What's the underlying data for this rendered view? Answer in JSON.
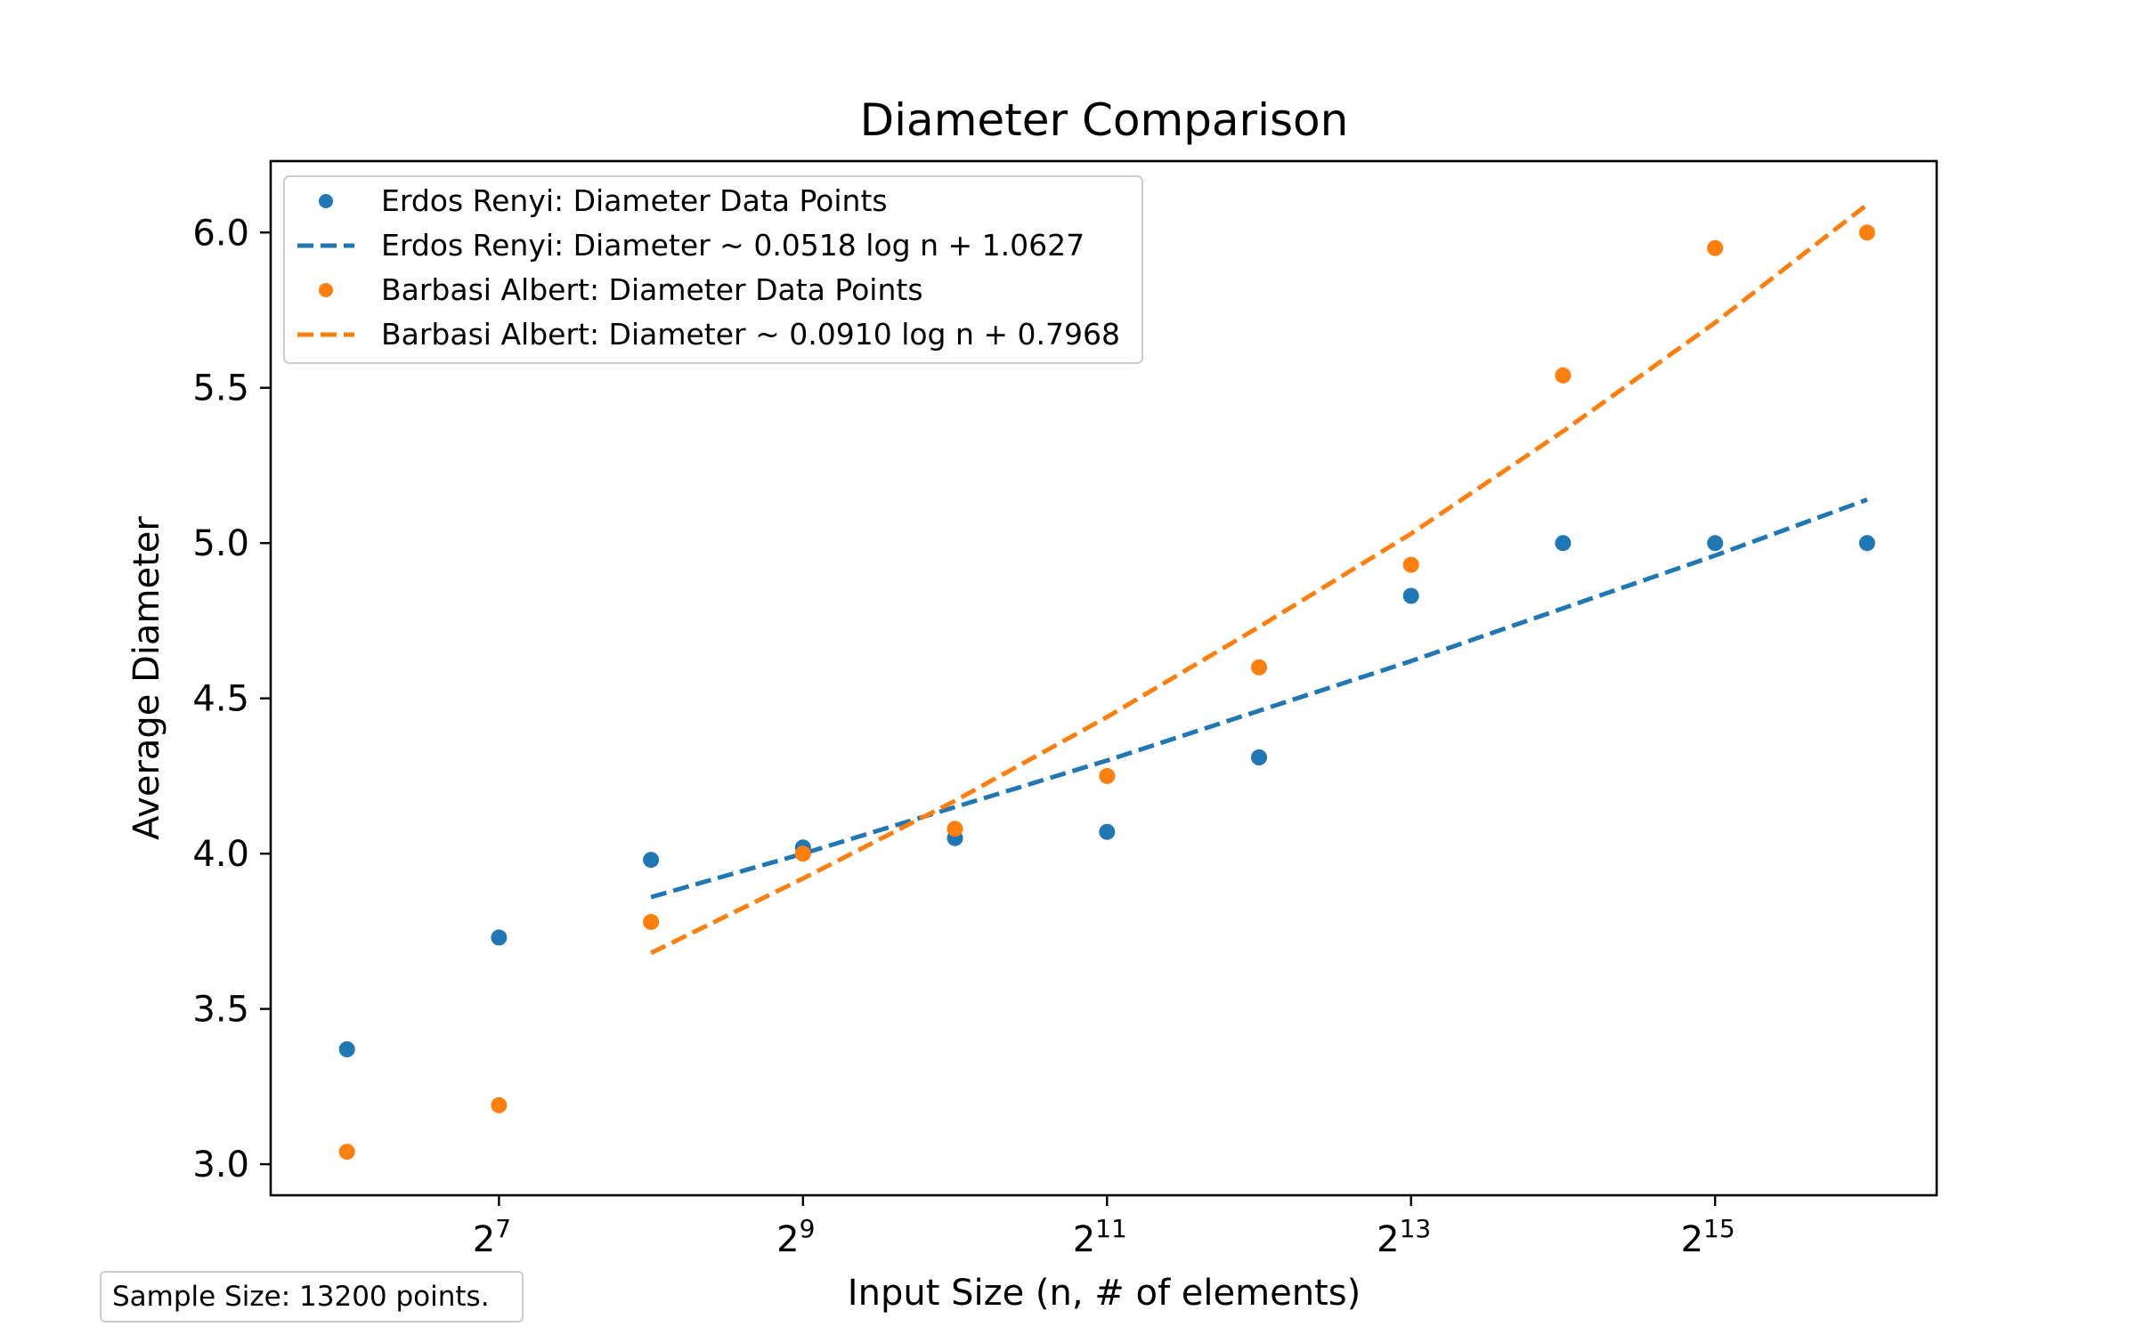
{
  "chart_data": {
    "type": "scatter",
    "title": "Diameter Comparison",
    "xlabel": "Input Size (n, # of elements)",
    "ylabel": "Average Diameter",
    "xscale": "log2",
    "xlim": [
      45.2,
      90000
    ],
    "ylim": [
      2.9,
      6.23
    ],
    "grid": false,
    "legend_position": "top-left",
    "x_ticks": [
      {
        "value": 128,
        "base": "2",
        "exp": "7"
      },
      {
        "value": 512,
        "base": "2",
        "exp": "9"
      },
      {
        "value": 2048,
        "base": "2",
        "exp": "11"
      },
      {
        "value": 8192,
        "base": "2",
        "exp": "13"
      },
      {
        "value": 32768,
        "base": "2",
        "exp": "15"
      }
    ],
    "y_ticks": [
      {
        "value": 3.0,
        "label": "3.0"
      },
      {
        "value": 3.5,
        "label": "3.5"
      },
      {
        "value": 4.0,
        "label": "4.0"
      },
      {
        "value": 4.5,
        "label": "4.5"
      },
      {
        "value": 5.0,
        "label": "5.0"
      },
      {
        "value": 5.5,
        "label": "5.5"
      },
      {
        "value": 6.0,
        "label": "6.0"
      }
    ],
    "series": [
      {
        "name": "Erdos Renyi: Diameter Data Points",
        "kind": "points",
        "color": "#1f77b4",
        "x": [
          64,
          128,
          256,
          512,
          1024,
          2048,
          4096,
          8192,
          16384,
          32768,
          65536
        ],
        "y": [
          3.37,
          3.73,
          3.98,
          4.02,
          4.05,
          4.07,
          4.31,
          4.83,
          5.0,
          5.0,
          5.0
        ]
      },
      {
        "name": "Erdos Renyi: Diameter ~ 0.0518 log n + 1.0627",
        "kind": "fit",
        "color": "#1f77b4",
        "x": [
          256,
          512,
          1024,
          2048,
          4096,
          8192,
          16384,
          32768,
          65536
        ],
        "y": [
          3.86,
          4.0,
          4.15,
          4.3,
          4.46,
          4.62,
          4.79,
          4.96,
          5.14
        ]
      },
      {
        "name": "Barbasi Albert: Diameter Data Points",
        "kind": "points",
        "color": "#ff7f0e",
        "x": [
          64,
          128,
          256,
          512,
          1024,
          2048,
          4096,
          8192,
          16384,
          32768,
          65536
        ],
        "y": [
          3.04,
          3.19,
          3.78,
          4.0,
          4.08,
          4.25,
          4.6,
          4.93,
          5.54,
          5.95,
          6.0
        ]
      },
      {
        "name": "Barbasi Albert: Diameter ~ 0.0910 log n + 0.7968",
        "kind": "fit",
        "color": "#ff7f0e",
        "x": [
          256,
          512,
          1024,
          2048,
          4096,
          8192,
          16384,
          32768,
          65536
        ],
        "y": [
          3.68,
          3.92,
          4.17,
          4.44,
          4.73,
          5.03,
          5.36,
          5.71,
          6.09
        ]
      }
    ]
  },
  "annotation": {
    "sample_size": "Sample Size: 13200 points."
  }
}
